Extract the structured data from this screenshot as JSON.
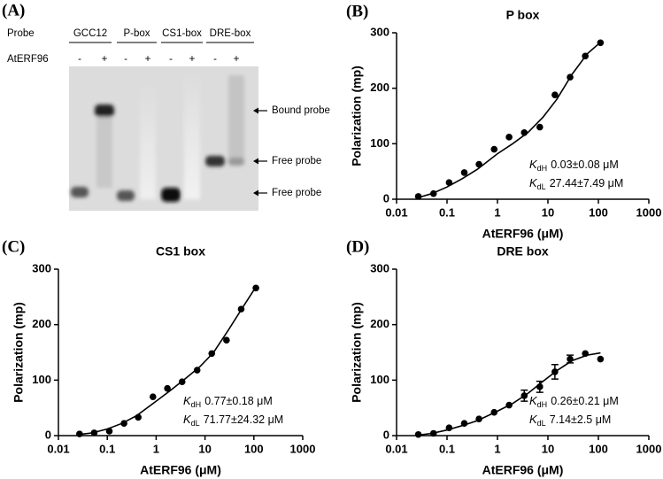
{
  "gel": {
    "panel_label": "(A)",
    "row_labels": [
      "Probe",
      "AtERF96"
    ],
    "probes": [
      "GCC12",
      "P-box",
      "CS1-box",
      "DRE-box"
    ],
    "lane_signs": [
      "-",
      "+",
      "-",
      "+",
      "-",
      "+",
      "-",
      "+"
    ],
    "arrows": [
      "Bound probe",
      "Free probe",
      "Free probe"
    ]
  },
  "chart_data": [
    {
      "type": "scatter",
      "panel_label": "(B)",
      "title": "P box",
      "xlabel": "AtERF96 (μM)",
      "ylabel": "Polarization (mp)",
      "xscale": "log",
      "xlim": [
        0.01,
        1000
      ],
      "xticks": [
        0.01,
        0.1,
        1,
        10,
        100,
        1000
      ],
      "ylim": [
        0,
        300
      ],
      "yticks": [
        0,
        100,
        200,
        300
      ],
      "color": "#000000",
      "x": [
        0.027,
        0.054,
        0.11,
        0.22,
        0.43,
        0.86,
        1.7,
        3.4,
        6.9,
        13.75,
        27.5,
        55,
        110
      ],
      "values": [
        5,
        10,
        30,
        48,
        63,
        90,
        112,
        120,
        130,
        188,
        220,
        258,
        282
      ],
      "fit_x": [
        0.027,
        0.05,
        0.1,
        0.2,
        0.4,
        1,
        2,
        4,
        8,
        15,
        30,
        60,
        110
      ],
      "fit_values": [
        3,
        10,
        22,
        37,
        54,
        82,
        100,
        120,
        148,
        180,
        225,
        262,
        283
      ],
      "annotations": [
        {
          "symbol": "K",
          "subscript": "dH",
          "text": "0.03±0.08 μM"
        },
        {
          "symbol": "K",
          "subscript": "dL",
          "text": "27.44±7.49 μM"
        }
      ]
    },
    {
      "type": "scatter",
      "panel_label": "(C)",
      "title": "CS1 box",
      "xlabel": "AtERF96 (μM)",
      "ylabel": "Polarization (mp)",
      "xscale": "log",
      "xlim": [
        0.01,
        1000
      ],
      "xticks": [
        0.01,
        0.1,
        1,
        10,
        100,
        1000
      ],
      "ylim": [
        0,
        300
      ],
      "yticks": [
        0,
        100,
        200,
        300
      ],
      "color": "#000000",
      "x": [
        0.027,
        0.054,
        0.11,
        0.22,
        0.43,
        0.86,
        1.7,
        3.4,
        6.9,
        13.75,
        27.5,
        55,
        110
      ],
      "values": [
        3,
        5,
        8,
        22,
        33,
        70,
        85,
        97,
        118,
        148,
        172,
        228,
        266
      ],
      "fit_x": [
        0.027,
        0.05,
        0.1,
        0.2,
        0.4,
        1,
        2,
        4,
        8,
        15,
        30,
        60,
        110
      ],
      "fit_values": [
        2,
        5,
        12,
        22,
        36,
        62,
        82,
        103,
        125,
        150,
        190,
        232,
        268
      ],
      "annotations": [
        {
          "symbol": "K",
          "subscript": "dH",
          "text": "0.77±0.18 μM"
        },
        {
          "symbol": "K",
          "subscript": "dL",
          "text": "71.77±24.32 μM"
        }
      ]
    },
    {
      "type": "scatter",
      "panel_label": "(D)",
      "title": "DRE box",
      "xlabel": "AtERF96 (μM)",
      "ylabel": "Polarization (mp)",
      "xscale": "log",
      "xlim": [
        0.01,
        1000
      ],
      "xticks": [
        0.01,
        0.1,
        1,
        10,
        100,
        1000
      ],
      "ylim": [
        0,
        300
      ],
      "yticks": [
        0,
        100,
        200,
        300
      ],
      "color": "#000000",
      "x": [
        0.027,
        0.054,
        0.11,
        0.22,
        0.43,
        0.86,
        1.7,
        3.4,
        6.9,
        13.75,
        27.5,
        55,
        110
      ],
      "values": [
        2,
        4,
        14,
        22,
        30,
        42,
        55,
        72,
        88,
        115,
        138,
        148,
        138
      ],
      "errors": [
        null,
        null,
        null,
        null,
        null,
        null,
        null,
        10,
        10,
        13,
        7,
        null,
        null
      ],
      "fit_x": [
        0.027,
        0.05,
        0.1,
        0.2,
        0.4,
        1,
        2,
        4,
        8,
        15,
        30,
        60,
        110
      ],
      "fit_values": [
        1,
        4,
        10,
        18,
        27,
        44,
        58,
        76,
        98,
        117,
        135,
        145,
        149
      ],
      "annotations": [
        {
          "symbol": "K",
          "subscript": "dH",
          "text": "0.26±0.21 μM"
        },
        {
          "symbol": "K",
          "subscript": "dL",
          "text": "7.14±2.5 μM"
        }
      ]
    }
  ]
}
